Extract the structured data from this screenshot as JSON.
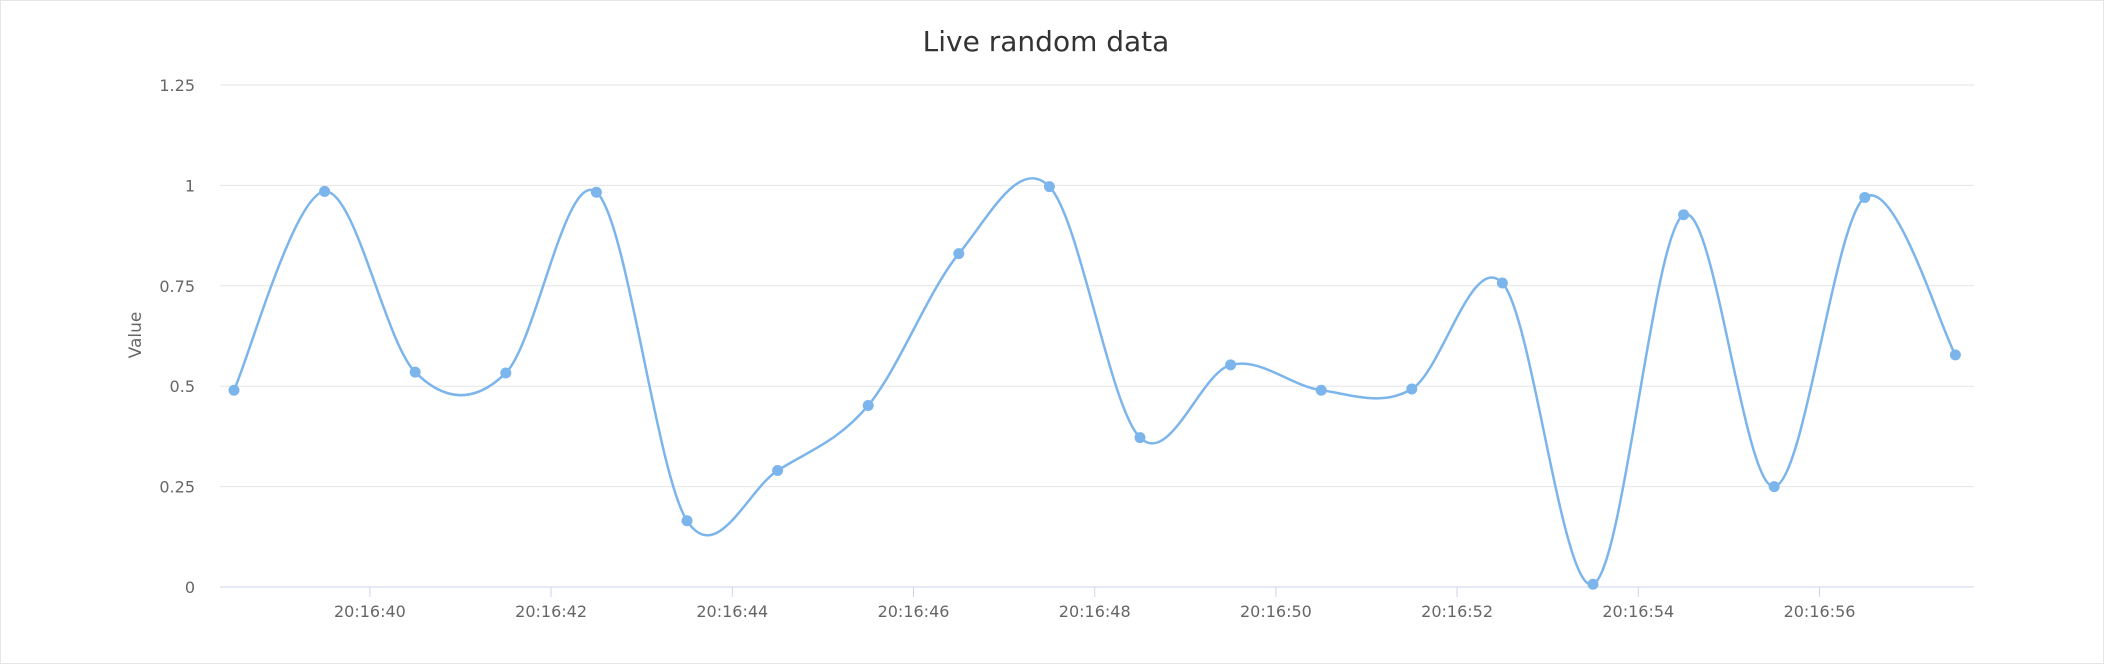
{
  "chart_data": {
    "type": "line",
    "title": "Live random data",
    "xlabel": "",
    "ylabel": "Value",
    "ylim": [
      0,
      1.25
    ],
    "y_ticks": [
      0,
      0.25,
      0.5,
      0.75,
      1,
      1.25
    ],
    "y_tick_labels": [
      "0",
      "0.25",
      "0.5",
      "0.75",
      "1",
      "1.25"
    ],
    "x_tick_labels": [
      "20:16:40",
      "20:16:42",
      "20:16:44",
      "20:16:46",
      "20:16:48",
      "20:16:50",
      "20:16:52",
      "20:16:54",
      "20:16:56"
    ],
    "grid": true,
    "smooth": true,
    "legend": "none",
    "color": "#7cb5ec",
    "series": [
      {
        "x": [
          "20:16:38.5",
          "20:16:39.5",
          "20:16:40.5",
          "20:16:41.5",
          "20:16:42.5",
          "20:16:43.5",
          "20:16:44.5",
          "20:16:45.5",
          "20:16:46.5",
          "20:16:47.5",
          "20:16:48.5",
          "20:16:49.5",
          "20:16:50.5",
          "20:16:51.5",
          "20:16:52.5",
          "20:16:53.5",
          "20:16:54.5",
          "20:16:55.5",
          "20:16:56.5",
          "20:16:57.5"
        ],
        "values": [
          0.49,
          0.985,
          0.535,
          0.533,
          0.983,
          0.165,
          0.29,
          0.452,
          0.83,
          0.997,
          0.372,
          0.553,
          0.49,
          0.493,
          0.757,
          0.007,
          0.927,
          0.25,
          0.97,
          0.578
        ]
      }
    ]
  }
}
